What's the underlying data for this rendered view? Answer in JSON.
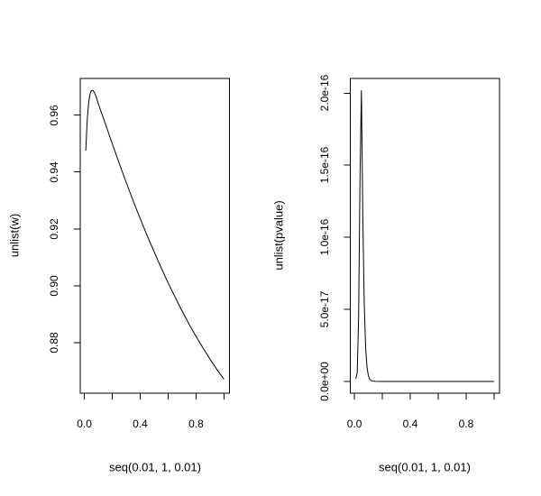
{
  "figure": {
    "background": "#ffffff",
    "stroke_color": "#000000",
    "text_color": "#000000"
  },
  "chart_data": [
    {
      "type": "line",
      "title": "",
      "xlabel": "seq(0.01, 1, 0.01)",
      "ylabel": "unlist(w)",
      "grid": false,
      "legend": null,
      "xlim": [
        -0.0296,
        1.0396
      ],
      "ylim": [
        0.8622,
        0.9729
      ],
      "x_ticks": [
        0.0,
        0.2,
        0.4,
        0.6,
        0.8,
        1.0
      ],
      "x_tick_labels": [
        "0.0",
        "",
        "0.4",
        "",
        "0.8",
        ""
      ],
      "y_ticks": [
        0.88,
        0.9,
        0.92,
        0.94,
        0.96
      ],
      "y_tick_labels": [
        "0.88",
        "0.90",
        "0.92",
        "0.94",
        "0.96"
      ],
      "x": [
        0.01,
        0.02,
        0.03,
        0.04,
        0.05,
        0.06,
        0.07,
        0.08,
        0.09,
        0.1,
        0.12,
        0.15,
        0.2,
        0.25,
        0.3,
        0.35,
        0.4,
        0.45,
        0.5,
        0.55,
        0.6,
        0.65,
        0.7,
        0.75,
        0.8,
        0.85,
        0.9,
        0.95,
        1.0
      ],
      "y": [
        0.9475,
        0.958,
        0.9642,
        0.9673,
        0.9686,
        0.9687,
        0.9681,
        0.967,
        0.9656,
        0.964,
        0.9612,
        0.957,
        0.9499,
        0.943,
        0.9363,
        0.9298,
        0.9236,
        0.9176,
        0.9119,
        0.9063,
        0.901,
        0.896,
        0.8911,
        0.8865,
        0.8822,
        0.8781,
        0.8742,
        0.8705,
        0.8671
      ]
    },
    {
      "type": "line",
      "title": "",
      "xlabel": "seq(0.01, 1, 0.01)",
      "ylabel": "unlist(pvalue)",
      "grid": false,
      "legend": null,
      "xlim": [
        -0.0296,
        1.0396
      ],
      "ylim": [
        -8.1e-18,
        2.102e-16
      ],
      "x_ticks": [
        0.0,
        0.2,
        0.4,
        0.6,
        0.8,
        1.0
      ],
      "x_tick_labels": [
        "0.0",
        "",
        "0.4",
        "",
        "0.8",
        ""
      ],
      "y_ticks": [
        0.0,
        5e-17,
        1e-16,
        1.5e-16,
        2e-16
      ],
      "y_tick_labels": [
        "0.0e+00",
        "5.0e-17",
        "1.0e-16",
        "1.5e-16",
        "2.0e-16"
      ],
      "x": [
        0.01,
        0.02,
        0.03,
        0.04,
        0.05,
        0.06,
        0.07,
        0.08,
        0.09,
        0.1,
        0.11,
        0.12,
        0.13,
        0.15,
        0.2,
        0.25,
        0.3,
        0.4,
        0.5,
        0.6,
        0.7,
        0.8,
        0.9,
        1.0
      ],
      "y": [
        2e-18,
        6e-18,
        4.5e-17,
        1.42e-16,
        2.02e-16,
        1.15e-16,
        5.5e-17,
        2.4e-17,
        1e-17,
        4e-18,
        1.5e-18,
        6e-19,
        3e-19,
        1e-19,
        0,
        0,
        0,
        0,
        0,
        0,
        0,
        0,
        0,
        0
      ]
    }
  ]
}
